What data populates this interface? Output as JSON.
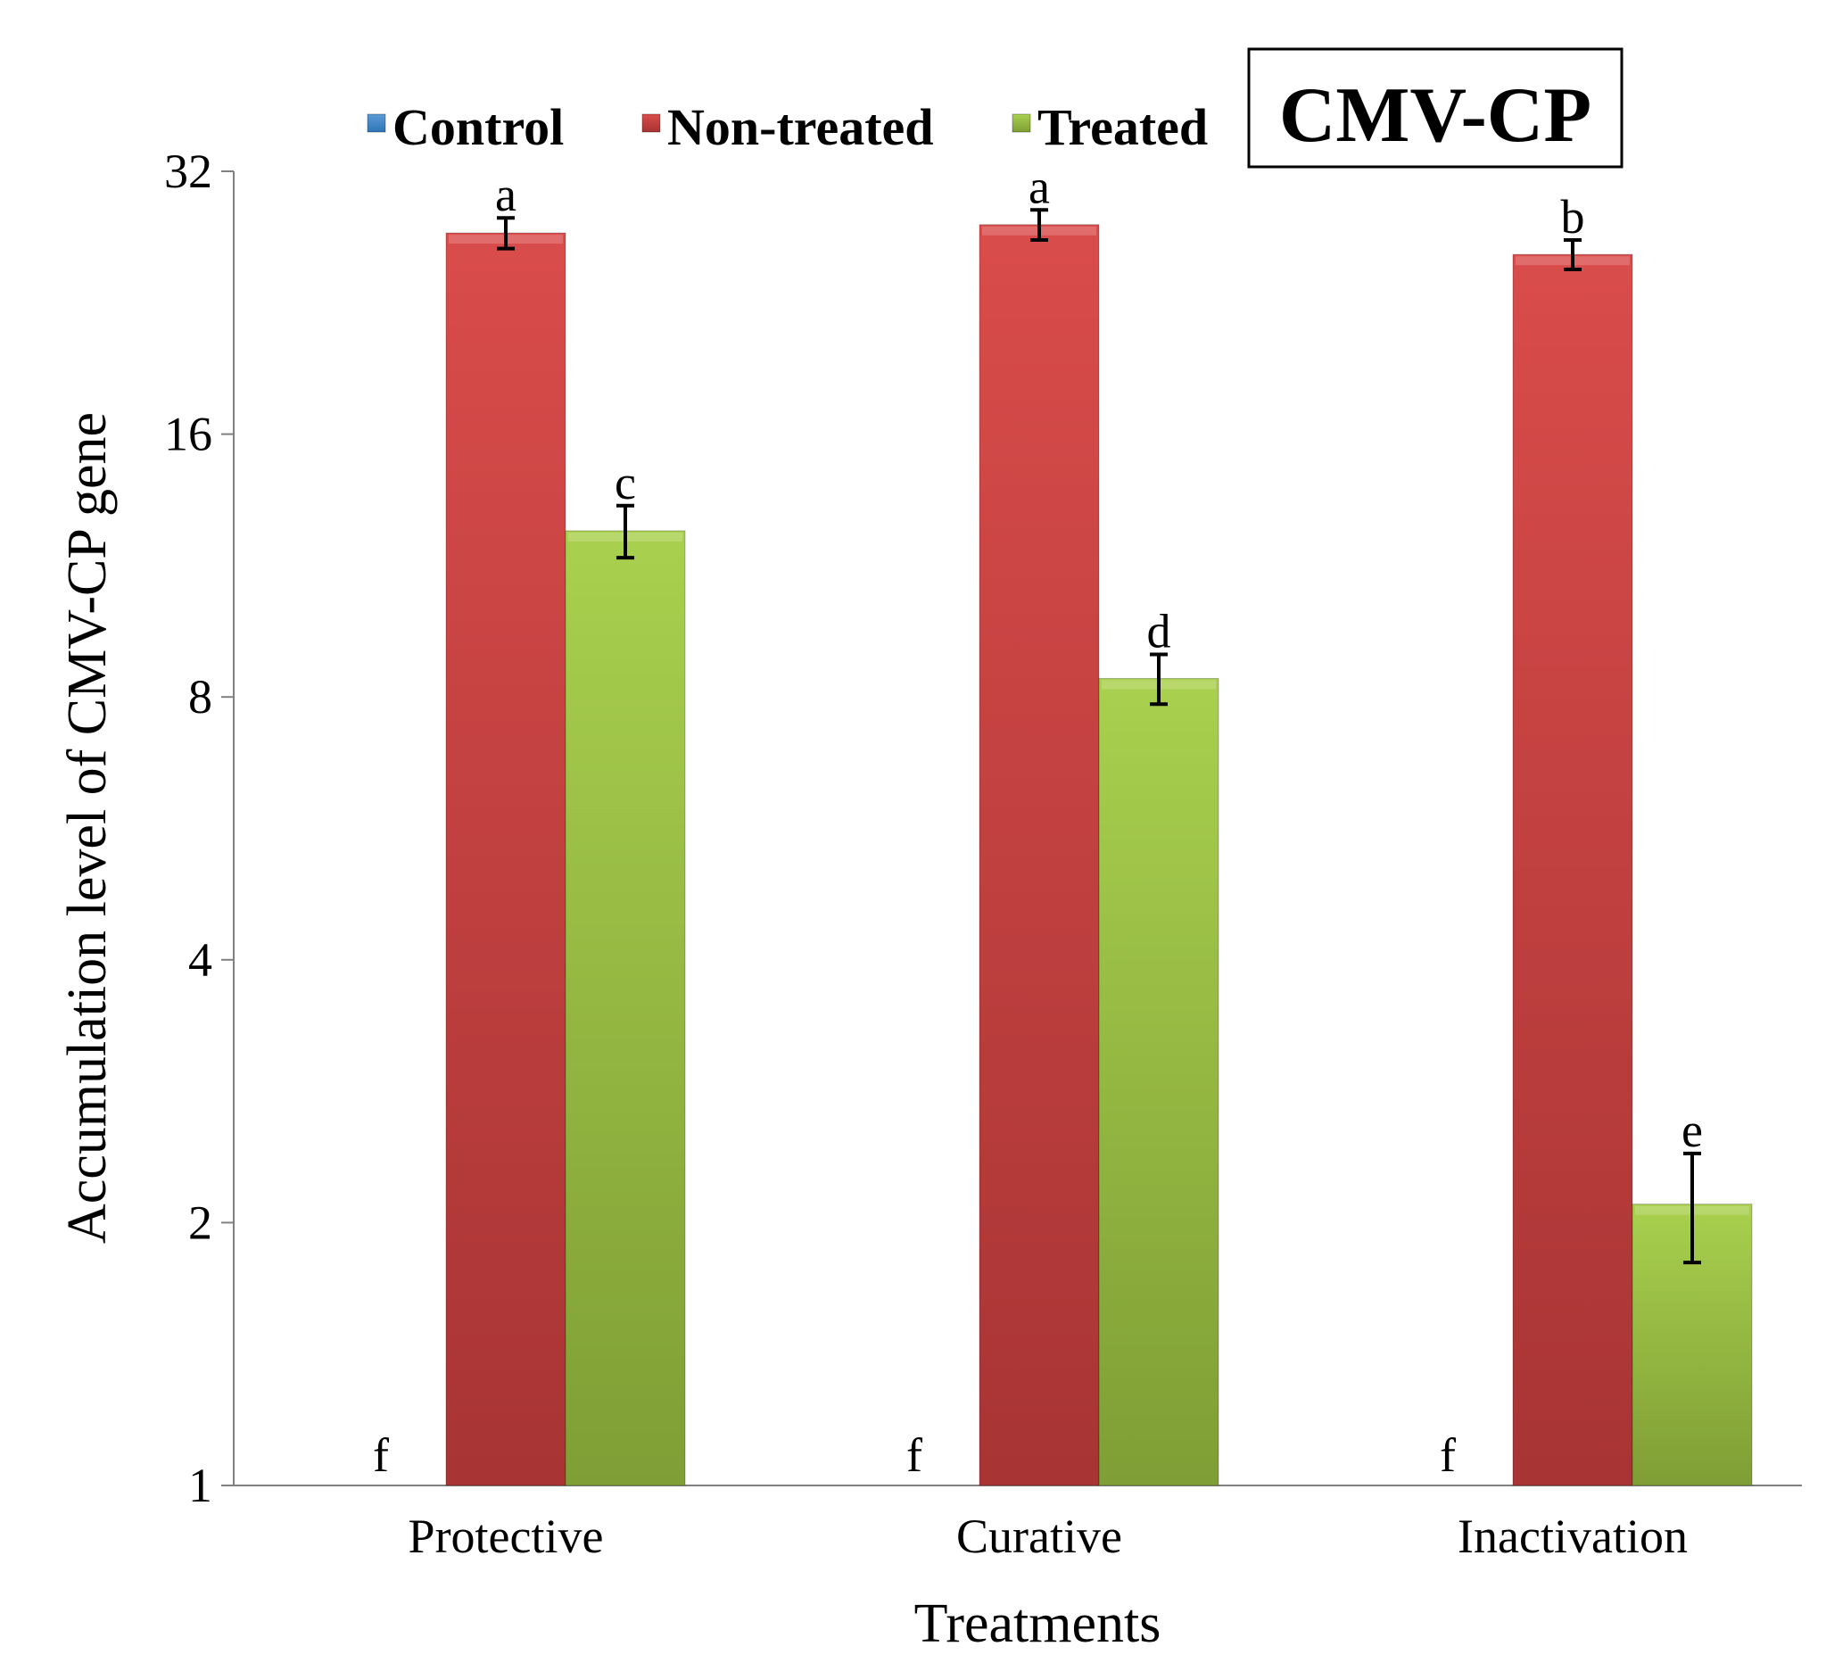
{
  "chart_data": {
    "type": "bar",
    "title": "CMV-CP",
    "xlabel": "Treatments",
    "ylabel": "Accumulation level of CMV-CP gene",
    "y_scale": "log2",
    "ylim": [
      1,
      32
    ],
    "y_ticks": [
      "1",
      "2",
      "4",
      "8",
      "16",
      "32"
    ],
    "categories": [
      "Protective",
      "Curative",
      "Inactivation"
    ],
    "legend_position": "top-center",
    "series": [
      {
        "name": "Control",
        "color": "#2e75b6",
        "values": [
          1,
          1,
          1
        ],
        "errors": [
          0,
          0,
          0
        ],
        "labels": [
          "f",
          "f",
          "f"
        ]
      },
      {
        "name": "Non-treated",
        "color": "#c0393b",
        "values": [
          27.2,
          27.8,
          25.7
        ],
        "errors": [
          1.1,
          1.1,
          1.0
        ],
        "labels": [
          "a",
          "a",
          "b"
        ]
      },
      {
        "name": "Treated",
        "color": "#8fb43c",
        "values": [
          12.4,
          8.4,
          2.1
        ],
        "errors": [
          0.85,
          0.55,
          0.3
        ],
        "labels": [
          "c",
          "d",
          "e"
        ]
      }
    ]
  }
}
